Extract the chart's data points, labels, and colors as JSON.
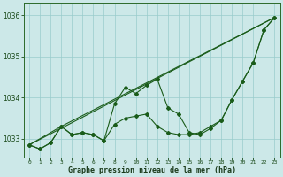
{
  "xlabel": "Graphe pression niveau de la mer (hPa)",
  "background_color": "#cce8e8",
  "grid_color": "#99cccc",
  "line_color": "#1a5c1a",
  "ylim": [
    1032.55,
    1036.3
  ],
  "xlim": [
    -0.5,
    23.5
  ],
  "yticks": [
    1033,
    1034,
    1035,
    1036
  ],
  "xticks": [
    0,
    1,
    2,
    3,
    4,
    5,
    6,
    7,
    8,
    9,
    10,
    11,
    12,
    13,
    14,
    15,
    16,
    17,
    18,
    19,
    20,
    21,
    22,
    23
  ],
  "line1": [
    1032.85,
    1032.75,
    1032.9,
    1033.3,
    1033.1,
    1033.15,
    1033.1,
    1032.95,
    1033.85,
    1034.25,
    1034.1,
    1034.3,
    1034.45,
    1033.75,
    1033.6,
    1033.15,
    1033.1,
    1033.25,
    1033.45,
    1033.95,
    1034.4,
    1034.85,
    1035.65,
    1035.95
  ],
  "line2": [
    1032.85,
    1032.75,
    1032.9,
    1033.3,
    1033.1,
    1033.15,
    1033.1,
    1032.95,
    1033.35,
    1033.5,
    1033.55,
    1033.6,
    1033.3,
    1033.15,
    1033.1,
    1033.1,
    1033.15,
    1033.3,
    1033.45,
    1033.95,
    1034.4,
    1034.85,
    1035.65,
    1035.95
  ],
  "line3_x": [
    0,
    23
  ],
  "line3_y": [
    1032.85,
    1035.95
  ],
  "line4_x": [
    0,
    3,
    23
  ],
  "line4_y": [
    1032.85,
    1033.3,
    1035.95
  ]
}
